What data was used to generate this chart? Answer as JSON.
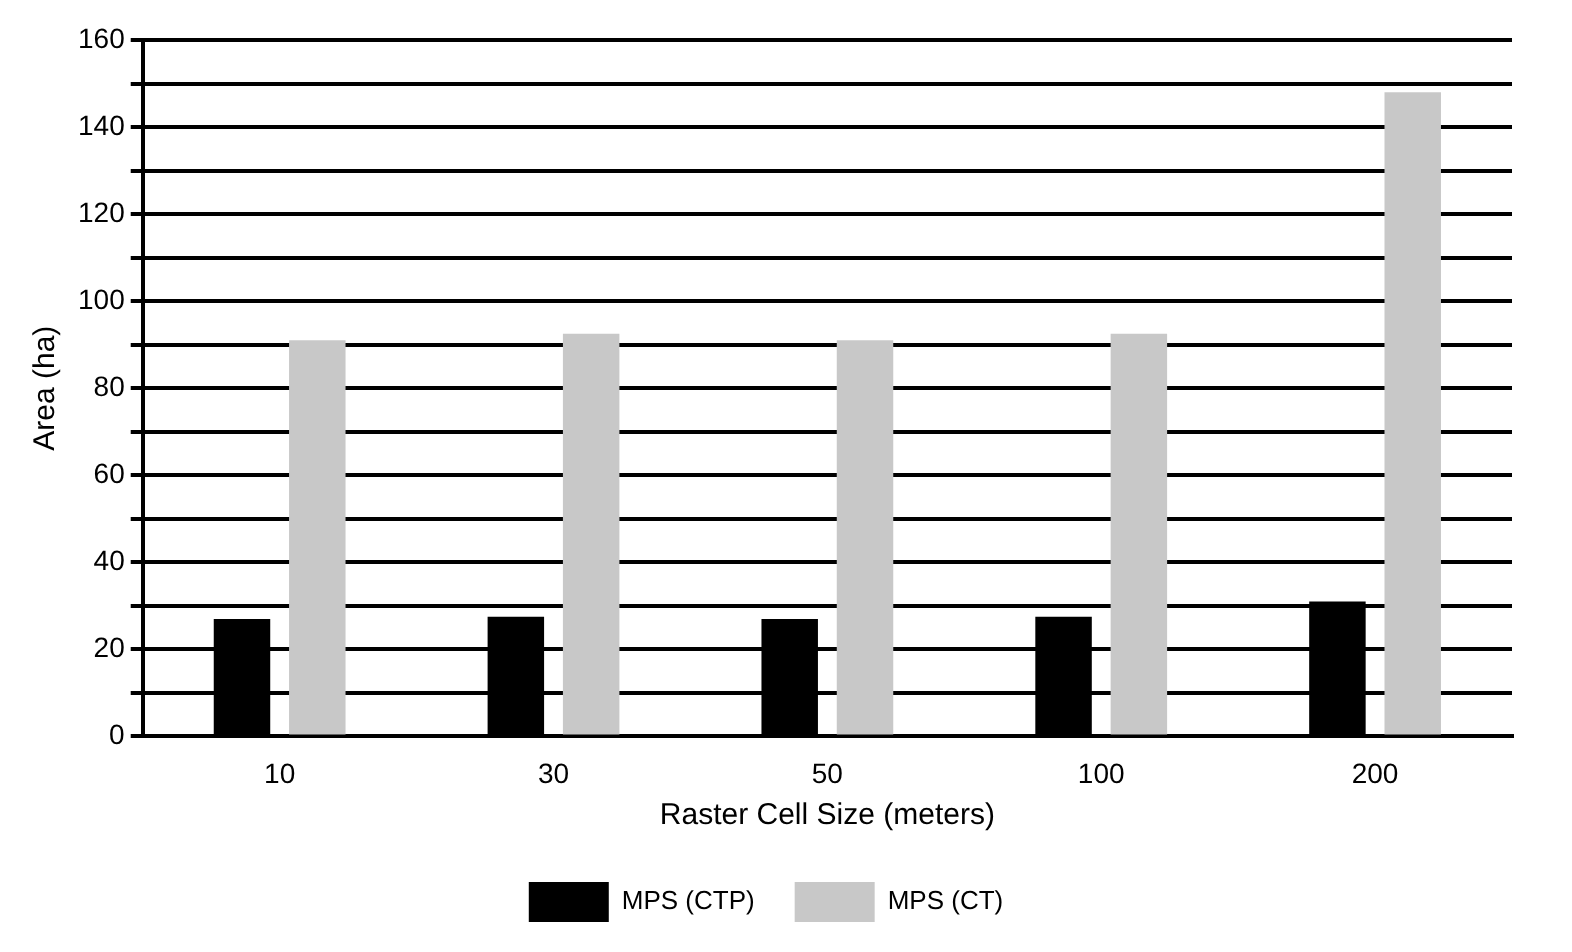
{
  "chart_data": {
    "type": "bar",
    "xlabel": "Raster Cell Size (meters)",
    "ylabel": "Area (ha)",
    "categories": [
      "10",
      "30",
      "50",
      "100",
      "200"
    ],
    "series": [
      {
        "name": "MPS (CTP)",
        "color": "#000000",
        "values": [
          27,
          27.5,
          27,
          27.5,
          31
        ]
      },
      {
        "name": "MPS (CT)",
        "color": "#c8c8c8",
        "values": [
          91,
          92.5,
          91,
          92.5,
          148
        ]
      }
    ],
    "ylim": [
      0,
      160
    ],
    "yticks": [
      0,
      {
        "value": 10,
        "label": null
      },
      20,
      {
        "value": 30,
        "label": null
      },
      40,
      {
        "value": 50,
        "label": null
      },
      60,
      {
        "value": 70,
        "label": null
      },
      80,
      {
        "value": 90,
        "label": null
      },
      100,
      {
        "value": 110,
        "label": null
      },
      120,
      {
        "value": 130,
        "label": null
      },
      140,
      {
        "value": 150,
        "label": null
      },
      160
    ],
    "grid": "y",
    "legend": "bottom"
  }
}
